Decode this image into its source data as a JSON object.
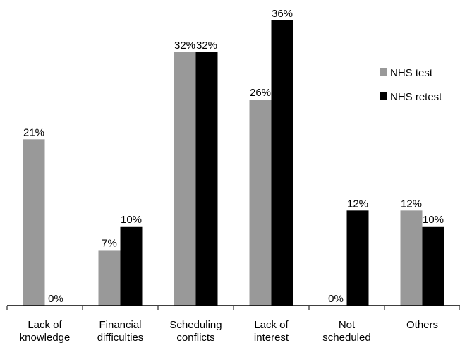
{
  "chart_data": {
    "type": "bar",
    "categories": [
      [
        "Lack of",
        "knowledge"
      ],
      [
        "Financial",
        "difficulties"
      ],
      [
        "Scheduling",
        "conflicts"
      ],
      [
        "Lack of",
        "interest"
      ],
      [
        "Not",
        "scheduled"
      ],
      [
        "Others"
      ]
    ],
    "series": [
      {
        "name": "NHS test",
        "color": "#999999",
        "values": [
          21,
          7,
          32,
          26,
          0,
          12
        ],
        "labels": [
          "21%",
          "7%",
          "32%",
          "26%",
          "0%",
          "12%"
        ]
      },
      {
        "name": "NHS retest",
        "color": "#000000",
        "values": [
          0,
          10,
          32,
          36,
          12,
          10
        ],
        "labels": [
          "0%",
          "10%",
          "32%",
          "36%",
          "12%",
          "10%"
        ]
      }
    ],
    "ylim": [
      0,
      36
    ],
    "legend_position": "top-right",
    "grid": false
  }
}
